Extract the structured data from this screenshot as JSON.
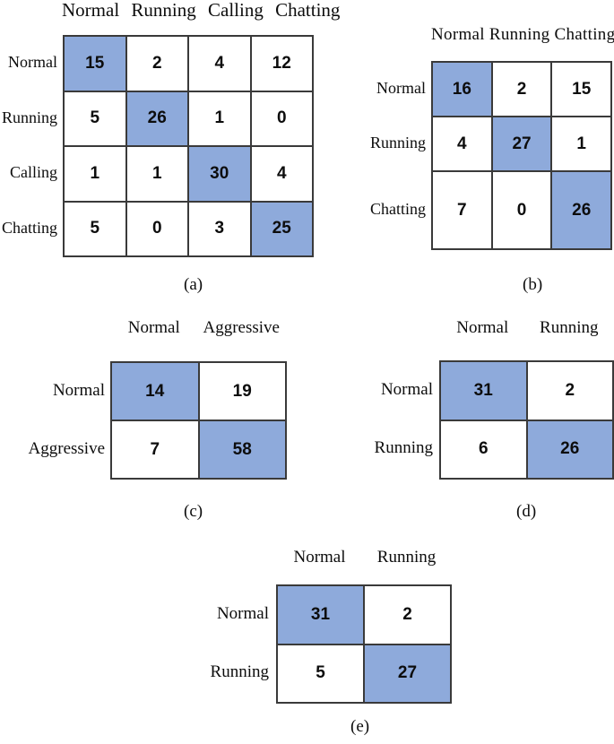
{
  "figure_type": "confusion-matrices",
  "colors": {
    "highlight": "#8EAADB",
    "border": "#3A3A3A",
    "text": "#0D0D0D"
  },
  "chart_data": [
    {
      "type": "heatmap",
      "caption": "(a)",
      "col_headers": [
        "Normal",
        "Running",
        "Calling",
        "Chatting"
      ],
      "row_headers": [
        "Normal",
        "Running",
        "Calling",
        "Chatting"
      ],
      "values": [
        [
          15,
          2,
          4,
          12
        ],
        [
          5,
          26,
          1,
          0
        ],
        [
          1,
          1,
          30,
          4
        ],
        [
          5,
          0,
          3,
          25
        ]
      ],
      "highlighted_cells": "main-diagonal"
    },
    {
      "type": "heatmap",
      "caption": "(b)",
      "col_headers": [
        "Normal",
        "Running",
        "Chatting"
      ],
      "row_headers": [
        "Normal",
        "Running",
        "Chatting"
      ],
      "values": [
        [
          16,
          2,
          15
        ],
        [
          4,
          27,
          1
        ],
        [
          7,
          0,
          26
        ]
      ],
      "highlighted_cells": "main-diagonal"
    },
    {
      "type": "heatmap",
      "caption": "(c)",
      "col_headers": [
        "Normal",
        "Aggressive"
      ],
      "row_headers": [
        "Normal",
        "Aggressive"
      ],
      "values": [
        [
          14,
          19
        ],
        [
          7,
          58
        ]
      ],
      "highlighted_cells": "main-diagonal"
    },
    {
      "type": "heatmap",
      "caption": "(d)",
      "col_headers": [
        "Normal",
        "Running"
      ],
      "row_headers": [
        "Normal",
        "Running"
      ],
      "values": [
        [
          31,
          2
        ],
        [
          6,
          26
        ]
      ],
      "highlighted_cells": "main-diagonal"
    },
    {
      "type": "heatmap",
      "caption": "(e)",
      "col_headers": [
        "Normal",
        "Running"
      ],
      "row_headers": [
        "Normal",
        "Running"
      ],
      "values": [
        [
          31,
          2
        ],
        [
          5,
          27
        ]
      ],
      "highlighted_cells": "main-diagonal"
    }
  ]
}
